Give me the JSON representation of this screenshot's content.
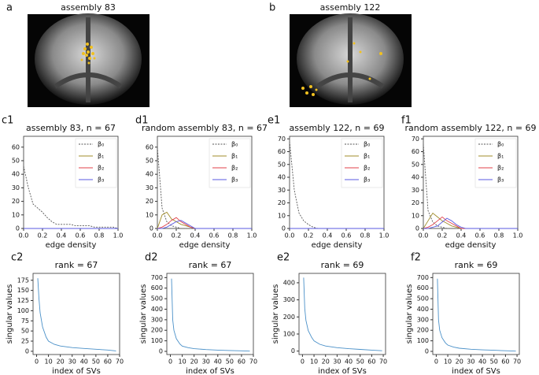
{
  "images": [
    {
      "label": "a",
      "title": "assembly 83"
    },
    {
      "label": "b",
      "title": "assembly 122"
    }
  ],
  "chart_data": [
    {
      "type": "line",
      "label": "c1",
      "title": "assembly 83, n = 67",
      "xlabel": "edge density",
      "legend": "upper right",
      "xlim": [
        0,
        1
      ],
      "ylim": [
        0,
        68
      ],
      "xticks": [
        {
          "value": 0,
          "label": "0.0"
        },
        0.2,
        0.4,
        0.6,
        0.8,
        {
          "value": 1,
          "label": "1.0"
        }
      ],
      "yticks": [
        0,
        10,
        20,
        30,
        40,
        50,
        60
      ],
      "x": [
        0,
        0.05,
        0.1,
        0.15,
        0.2,
        0.25,
        0.3,
        0.35,
        0.4,
        0.45,
        0.5,
        0.55,
        0.6,
        0.65,
        0.7,
        0.75,
        0.8,
        0.85,
        0.9,
        0.95,
        1
      ],
      "series": [
        {
          "name": "β₀",
          "color": "#555555",
          "linestyle": "dashed",
          "values": [
            46,
            30,
            18,
            15,
            12,
            8,
            5,
            3,
            3,
            3,
            3,
            2,
            2,
            2,
            2,
            1,
            1,
            1,
            1,
            1,
            0
          ]
        },
        {
          "name": "β₁",
          "color": "#a08c2a",
          "values": [
            0,
            0,
            0,
            0,
            0,
            0,
            0,
            0,
            0,
            0,
            0,
            0,
            0,
            0,
            0,
            0,
            0,
            0,
            0,
            0,
            0
          ]
        },
        {
          "name": "β₂",
          "color": "#e0404a",
          "values": [
            0,
            0,
            0,
            0,
            0,
            0,
            0,
            0,
            0,
            0,
            0,
            0,
            0,
            0,
            0,
            0,
            0,
            0,
            0,
            0,
            0
          ]
        },
        {
          "name": "β₃",
          "color": "#5a5ae0",
          "values": [
            0,
            0,
            0,
            0,
            0,
            0,
            0,
            0,
            0,
            0,
            0,
            0,
            0,
            0,
            0,
            0,
            0,
            0,
            0,
            0,
            0
          ]
        }
      ]
    },
    {
      "type": "line",
      "label": "d1",
      "title": "random assembly 83, n = 67",
      "xlabel": "edge density",
      "legend": "upper right",
      "xlim": [
        0,
        1
      ],
      "ylim": [
        0,
        68
      ],
      "xticks": [
        {
          "value": 0,
          "label": "0.0"
        },
        0.2,
        0.4,
        0.6,
        0.8,
        {
          "value": 1,
          "label": "1.0"
        }
      ],
      "yticks": [
        0,
        10,
        20,
        30,
        40,
        50,
        60
      ],
      "x": [
        0,
        0.05,
        0.1,
        0.15,
        0.2,
        0.25,
        0.3,
        0.35,
        0.4,
        0.45,
        0.5,
        0.55,
        0.6,
        0.65,
        0.7,
        0.75,
        0.8,
        0.85,
        0.9,
        0.95,
        1
      ],
      "series": [
        {
          "name": "β₀",
          "color": "#555555",
          "linestyle": "dashed",
          "values": [
            60,
            15,
            5,
            2,
            1,
            0,
            0,
            0,
            0,
            0,
            0,
            0,
            0,
            0,
            0,
            0,
            0,
            0,
            0,
            0,
            0
          ]
        },
        {
          "name": "β₁",
          "color": "#a08c2a",
          "values": [
            0,
            10,
            12,
            7,
            5,
            3,
            2,
            1,
            0,
            0,
            0,
            0,
            0,
            0,
            0,
            0,
            0,
            0,
            0,
            0,
            0
          ]
        },
        {
          "name": "β₂",
          "color": "#e0404a",
          "values": [
            0,
            1,
            3,
            6,
            8,
            5,
            3,
            1,
            0,
            0,
            0,
            0,
            0,
            0,
            0,
            0,
            0,
            0,
            0,
            0,
            0
          ]
        },
        {
          "name": "β₃",
          "color": "#5a5ae0",
          "values": [
            0,
            0,
            1,
            3,
            5,
            6,
            4,
            2,
            0,
            0,
            0,
            0,
            0,
            0,
            0,
            0,
            0,
            0,
            0,
            0,
            0
          ]
        }
      ]
    },
    {
      "type": "line",
      "label": "e1",
      "title": "assembly 122, n = 69",
      "xlabel": "edge density",
      "legend": "upper right",
      "xlim": [
        0,
        1
      ],
      "ylim": [
        0,
        72
      ],
      "xticks": [
        {
          "value": 0,
          "label": "0.0"
        },
        0.2,
        0.4,
        0.6,
        0.8,
        {
          "value": 1,
          "label": "1.0"
        }
      ],
      "yticks": [
        0,
        10,
        20,
        30,
        40,
        50,
        60,
        70
      ],
      "x": [
        0,
        0.05,
        0.1,
        0.15,
        0.2,
        0.25,
        0.3,
        0.35,
        0.4,
        0.45,
        0.5,
        0.55,
        0.6,
        0.65,
        0.7,
        0.75,
        0.8,
        0.85,
        0.9,
        0.95,
        1
      ],
      "series": [
        {
          "name": "β₀",
          "color": "#555555",
          "linestyle": "dashed",
          "values": [
            68,
            30,
            12,
            6,
            3,
            1,
            0,
            0,
            0,
            0,
            0,
            0,
            0,
            0,
            0,
            0,
            0,
            0,
            0,
            0,
            0
          ]
        },
        {
          "name": "β₁",
          "color": "#a08c2a",
          "values": [
            0,
            0,
            0,
            0,
            0,
            0,
            0,
            0,
            0,
            0,
            0,
            0,
            0,
            0,
            0,
            0,
            0,
            0,
            0,
            0,
            0
          ]
        },
        {
          "name": "β₂",
          "color": "#e0404a",
          "values": [
            0,
            0,
            0,
            0,
            0,
            0,
            0,
            0,
            0,
            0,
            0,
            0,
            0,
            0,
            0,
            0,
            0,
            0,
            0,
            0,
            0
          ]
        },
        {
          "name": "β₃",
          "color": "#5a5ae0",
          "values": [
            0,
            0,
            0,
            0,
            0,
            0,
            0,
            0,
            0,
            0,
            0,
            0,
            0,
            0,
            0,
            0,
            0,
            0,
            0,
            0,
            0
          ]
        }
      ]
    },
    {
      "type": "line",
      "label": "f1",
      "title": "random assembly 122, n = 69",
      "xlabel": "edge density",
      "legend": "upper right",
      "xlim": [
        0,
        1
      ],
      "ylim": [
        0,
        72
      ],
      "xticks": [
        {
          "value": 0,
          "label": "0.0"
        },
        0.2,
        0.4,
        0.6,
        0.8,
        {
          "value": 1,
          "label": "1.0"
        }
      ],
      "yticks": [
        0,
        10,
        20,
        30,
        40,
        50,
        60,
        70
      ],
      "x": [
        0,
        0.05,
        0.1,
        0.15,
        0.2,
        0.25,
        0.3,
        0.35,
        0.4,
        0.45,
        0.5,
        0.55,
        0.6,
        0.65,
        0.7,
        0.75,
        0.8,
        0.85,
        0.9,
        0.95,
        1
      ],
      "series": [
        {
          "name": "β₀",
          "color": "#555555",
          "linestyle": "dashed",
          "values": [
            66,
            14,
            5,
            2,
            1,
            0,
            0,
            0,
            0,
            0,
            0,
            0,
            0,
            0,
            0,
            0,
            0,
            0,
            0,
            0,
            0
          ]
        },
        {
          "name": "β₁",
          "color": "#a08c2a",
          "values": [
            0,
            6,
            12,
            9,
            6,
            4,
            2,
            1,
            0,
            0,
            0,
            0,
            0,
            0,
            0,
            0,
            0,
            0,
            0,
            0,
            0
          ]
        },
        {
          "name": "β₂",
          "color": "#e0404a",
          "values": [
            0,
            1,
            3,
            6,
            9,
            6,
            4,
            2,
            0,
            0,
            0,
            0,
            0,
            0,
            0,
            0,
            0,
            0,
            0,
            0,
            0
          ]
        },
        {
          "name": "β₃",
          "color": "#5a5ae0",
          "values": [
            0,
            0,
            1,
            2,
            5,
            8,
            6,
            3,
            1,
            0,
            0,
            0,
            0,
            0,
            0,
            0,
            0,
            0,
            0,
            0,
            0
          ]
        }
      ]
    },
    {
      "type": "line",
      "label": "c2",
      "title": "rank = 67",
      "xlabel": "index of SVs",
      "ylabel": "singular values",
      "xlim": [
        -3,
        70
      ],
      "ylim": [
        -8,
        192
      ],
      "xticks": [
        0,
        10,
        20,
        30,
        40,
        50,
        60,
        70
      ],
      "yticks": [
        0,
        25,
        50,
        75,
        100,
        125,
        150,
        175
      ],
      "x": [
        1,
        2,
        3,
        5,
        8,
        10,
        15,
        20,
        30,
        40,
        50,
        60,
        67
      ],
      "series": [
        {
          "color": "#4a90c8",
          "values": [
            180,
            130,
            95,
            60,
            35,
            25,
            17,
            13,
            9,
            7,
            5,
            3,
            1
          ]
        }
      ]
    },
    {
      "type": "line",
      "label": "d2",
      "title": "rank = 67",
      "xlabel": "index of SVs",
      "ylabel": "singular values",
      "xlim": [
        -3,
        70
      ],
      "ylim": [
        -30,
        740
      ],
      "xticks": [
        0,
        10,
        20,
        30,
        40,
        50,
        60,
        70
      ],
      "yticks": [
        0,
        100,
        200,
        300,
        400,
        500,
        600,
        700
      ],
      "x": [
        1,
        2,
        3,
        5,
        8,
        10,
        15,
        20,
        30,
        40,
        50,
        60,
        67
      ],
      "series": [
        {
          "color": "#4a90c8",
          "values": [
            690,
            300,
            200,
            120,
            70,
            50,
            35,
            25,
            17,
            12,
            8,
            5,
            2
          ]
        }
      ]
    },
    {
      "type": "line",
      "label": "e2",
      "title": "rank = 69",
      "xlabel": "index of SVs",
      "ylabel": "singular values",
      "xlim": [
        -3,
        72
      ],
      "ylim": [
        -20,
        455
      ],
      "xticks": [
        0,
        10,
        20,
        30,
        40,
        50,
        60,
        70
      ],
      "yticks": [
        0,
        100,
        200,
        300,
        400
      ],
      "x": [
        1,
        2,
        3,
        5,
        8,
        10,
        15,
        20,
        30,
        40,
        50,
        60,
        69
      ],
      "series": [
        {
          "color": "#4a90c8",
          "values": [
            430,
            250,
            180,
            120,
            80,
            60,
            40,
            30,
            20,
            14,
            10,
            6,
            2
          ]
        }
      ]
    },
    {
      "type": "line",
      "label": "f2",
      "title": "rank = 69",
      "xlabel": "index of SVs",
      "ylabel": "singular values",
      "xlim": [
        -3,
        72
      ],
      "ylim": [
        -30,
        740
      ],
      "xticks": [
        0,
        10,
        20,
        30,
        40,
        50,
        60,
        70
      ],
      "yticks": [
        0,
        100,
        200,
        300,
        400,
        500,
        600,
        700
      ],
      "x": [
        1,
        2,
        3,
        5,
        8,
        10,
        15,
        20,
        30,
        40,
        50,
        60,
        69
      ],
      "series": [
        {
          "color": "#4a90c8",
          "values": [
            690,
            300,
            200,
            130,
            80,
            60,
            40,
            30,
            20,
            14,
            10,
            6,
            2
          ]
        }
      ]
    }
  ]
}
